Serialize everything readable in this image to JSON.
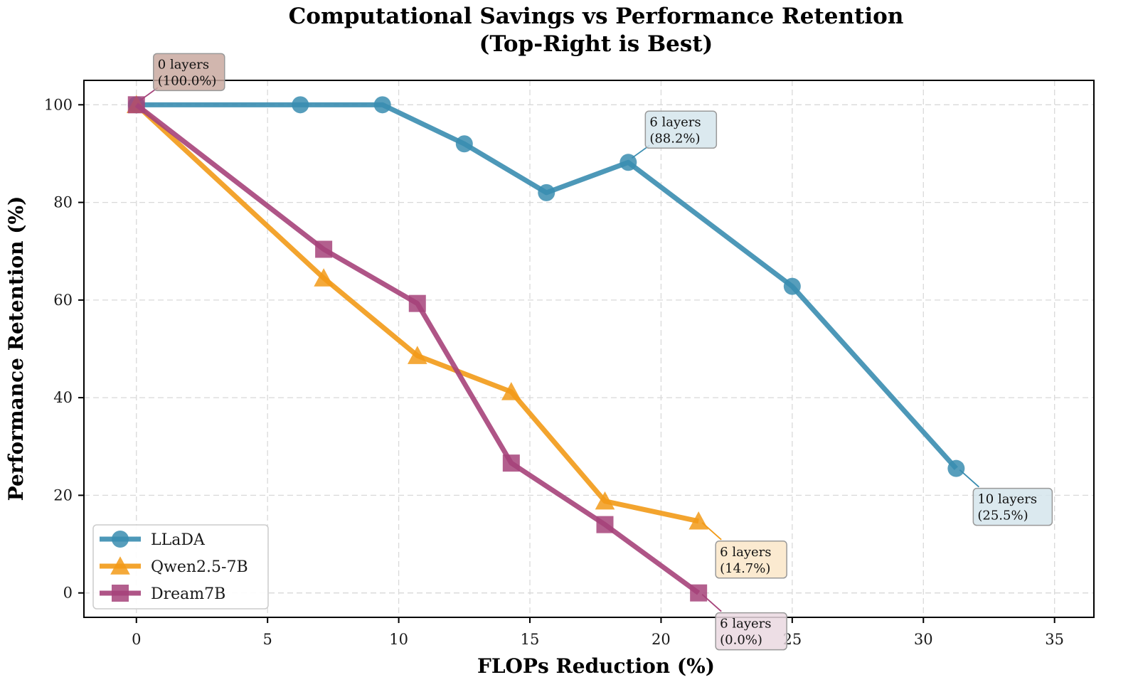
{
  "chart_data": {
    "type": "line",
    "title": "Computational Savings vs Performance Retention",
    "subtitle": "(Top-Right is Best)",
    "xlabel": "FLOPs Reduction (%)",
    "ylabel": "Performance Retention (%)",
    "xlim": [
      -2,
      36.5
    ],
    "ylim": [
      -5,
      105
    ],
    "xticks": [
      0,
      5,
      10,
      15,
      20,
      25,
      30,
      35
    ],
    "yticks": [
      0,
      20,
      40,
      60,
      80,
      100
    ],
    "grid": true,
    "legend_position": "bottom-left",
    "series": [
      {
        "name": "LLaDA",
        "color": "#3a8db0",
        "marker": "circle",
        "x": [
          0,
          6.25,
          9.38,
          12.5,
          15.63,
          18.75,
          25.0,
          31.25
        ],
        "y": [
          100.0,
          100.0,
          100.0,
          92.0,
          82.0,
          88.2,
          62.8,
          25.5
        ]
      },
      {
        "name": "Qwen2.5-7B",
        "color": "#f29a17",
        "marker": "triangle",
        "x": [
          0,
          7.14,
          10.71,
          14.29,
          17.86,
          21.43
        ],
        "y": [
          100.0,
          64.5,
          48.6,
          41.2,
          18.8,
          14.7
        ]
      },
      {
        "name": "Dream7B",
        "color": "#a6437a",
        "marker": "square",
        "x": [
          0,
          7.14,
          10.71,
          14.29,
          17.86,
          21.43
        ],
        "y": [
          100.0,
          70.4,
          59.3,
          26.6,
          14.0,
          0.0
        ]
      }
    ],
    "annotations": [
      {
        "series": "Dream7B",
        "x": 0,
        "y": 100.0,
        "line1": "0 layers",
        "line2": "(100.0%)",
        "box_color": "#c9a9a0",
        "arrow_color": "#a6437a",
        "placement": "above-right"
      },
      {
        "series": "LLaDA",
        "x": 18.75,
        "y": 88.2,
        "line1": "6 layers",
        "line2": "(88.2%)",
        "box_color": "#d5e5ec",
        "arrow_color": "#3a8db0",
        "placement": "above-right"
      },
      {
        "series": "LLaDA",
        "x": 31.25,
        "y": 25.5,
        "line1": "10 layers",
        "line2": "(25.5%)",
        "box_color": "#d5e5ec",
        "arrow_color": "#3a8db0",
        "placement": "below-right"
      },
      {
        "series": "Qwen2.5-7B",
        "x": 21.43,
        "y": 14.7,
        "line1": "6 layers",
        "line2": "(14.7%)",
        "box_color": "#fae6c8",
        "arrow_color": "#f29a17",
        "placement": "below-right"
      },
      {
        "series": "Dream7B",
        "x": 21.43,
        "y": 0.0,
        "line1": "6 layers",
        "line2": "(0.0%)",
        "box_color": "#ead8e1",
        "arrow_color": "#a6437a",
        "placement": "below-right"
      }
    ]
  }
}
